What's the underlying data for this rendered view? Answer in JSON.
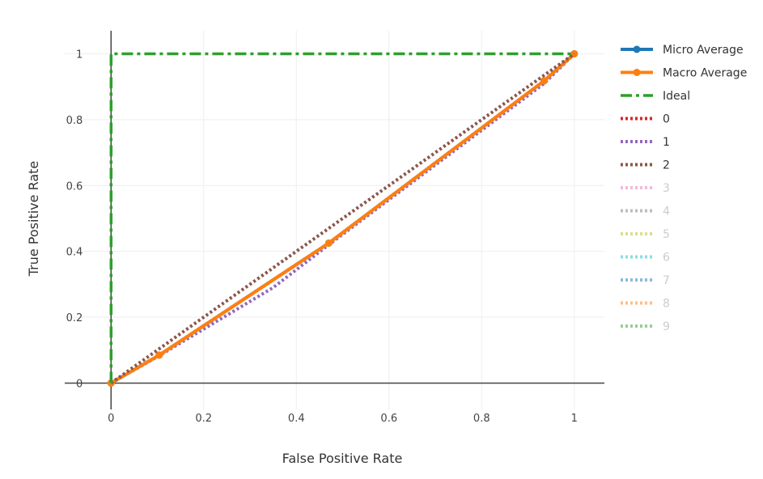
{
  "chart_data": {
    "type": "line",
    "xlabel": "False Positive Rate",
    "ylabel": "True Positive Rate",
    "xlim": [
      -0.1,
      1.065
    ],
    "ylim": [
      -0.08,
      1.07
    ],
    "xticks": [
      "0",
      "0.2",
      "0.4",
      "0.6",
      "0.8",
      "1"
    ],
    "yticks": [
      "0",
      "0.2",
      "0.4",
      "0.6",
      "0.8",
      "1"
    ],
    "grid": true,
    "legend_position": "right",
    "series": [
      {
        "name": "Micro Average",
        "color": "#1f77b4",
        "style": "solid-markers",
        "visible": true,
        "x": [
          0,
          0.104,
          0.47,
          0.935,
          1
        ],
        "y": [
          0,
          0.085,
          0.425,
          0.918,
          1
        ]
      },
      {
        "name": "Macro Average",
        "color": "#ff7f0e",
        "style": "solid-markers",
        "visible": true,
        "x": [
          0,
          0.104,
          0.47,
          0.935,
          1
        ],
        "y": [
          0,
          0.085,
          0.425,
          0.918,
          1
        ]
      },
      {
        "name": "Ideal",
        "color": "#2ca02c",
        "style": "dashdot",
        "visible": true,
        "x": [
          0,
          0,
          1
        ],
        "y": [
          0,
          1,
          1
        ]
      },
      {
        "name": "0",
        "color": "#d62728",
        "style": "dot",
        "visible": true,
        "x": [
          0,
          0.104,
          0.47,
          0.935,
          1
        ],
        "y": [
          0,
          0.085,
          0.425,
          0.918,
          1
        ]
      },
      {
        "name": "1",
        "color": "#9467bd",
        "style": "dot",
        "visible": true,
        "x": [
          0,
          0.1,
          0.35,
          0.47,
          0.935,
          1
        ],
        "y": [
          0,
          0.08,
          0.29,
          0.42,
          0.91,
          1
        ]
      },
      {
        "name": "2",
        "color": "#8c564b",
        "style": "dot",
        "visible": true,
        "x": [
          0,
          0.1,
          0.47,
          1
        ],
        "y": [
          0,
          0.1,
          0.47,
          1
        ]
      },
      {
        "name": "3",
        "color": "#e377c2",
        "style": "dot",
        "visible": false
      },
      {
        "name": "4",
        "color": "#7f7f7f",
        "style": "dot",
        "visible": false
      },
      {
        "name": "5",
        "color": "#bcbd22",
        "style": "dot",
        "visible": false
      },
      {
        "name": "6",
        "color": "#17becf",
        "style": "dot",
        "visible": false
      },
      {
        "name": "7",
        "color": "#1f77b4",
        "style": "dot",
        "visible": false
      },
      {
        "name": "8",
        "color": "#ff7f0e",
        "style": "dot",
        "visible": false
      },
      {
        "name": "9",
        "color": "#2ca02c",
        "style": "dot",
        "visible": false
      }
    ]
  }
}
